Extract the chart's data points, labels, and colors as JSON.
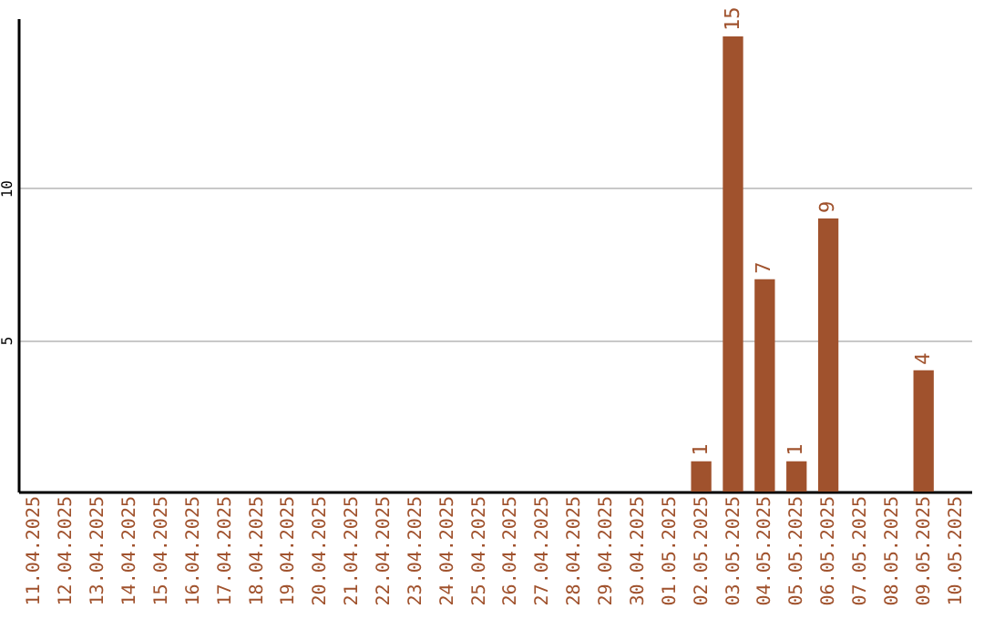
{
  "chart_data": {
    "type": "bar",
    "categories": [
      "11.04.2025",
      "12.04.2025",
      "13.04.2025",
      "14.04.2025",
      "15.04.2025",
      "16.04.2025",
      "17.04.2025",
      "18.04.2025",
      "19.04.2025",
      "20.04.2025",
      "21.04.2025",
      "22.04.2025",
      "23.04.2025",
      "24.04.2025",
      "25.04.2025",
      "26.04.2025",
      "27.04.2025",
      "28.04.2025",
      "29.04.2025",
      "30.04.2025",
      "01.05.2025",
      "02.05.2025",
      "03.05.2025",
      "04.05.2025",
      "05.05.2025",
      "06.05.2025",
      "07.05.2025",
      "08.05.2025",
      "09.05.2025",
      "10.05.2025"
    ],
    "values": [
      0,
      0,
      0,
      0,
      0,
      0,
      0,
      0,
      0,
      0,
      0,
      0,
      0,
      0,
      0,
      0,
      0,
      0,
      0,
      0,
      0,
      1,
      15,
      7,
      1,
      9,
      0,
      0,
      4,
      0
    ],
    "value_labels": [
      null,
      null,
      null,
      null,
      null,
      null,
      null,
      null,
      null,
      null,
      null,
      null,
      null,
      null,
      null,
      null,
      null,
      null,
      null,
      null,
      null,
      "1",
      "15",
      "7",
      "1",
      "9",
      null,
      null,
      "4",
      null
    ],
    "color": "#a0522d",
    "ylim": [
      0,
      15.6
    ],
    "yticks": [
      5,
      10
    ],
    "grid": "y"
  }
}
